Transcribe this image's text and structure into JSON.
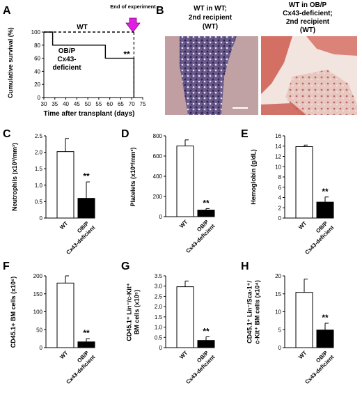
{
  "panel_letters": [
    "A",
    "B",
    "C",
    "D",
    "E",
    "F",
    "G",
    "H"
  ],
  "panel_a": {
    "ylabel": "Cumulative survival (%)",
    "xlabel": "Time after transplant (days)",
    "annotation": "End of experiment",
    "label_wt": "WT",
    "label_ko_line1": "OB/P",
    "label_ko_line2": "Cx43-",
    "label_ko_line3": "deficient",
    "significance": "**"
  },
  "panel_b": {
    "left_line1": "WT in WT;",
    "left_line2": "2nd recipient",
    "left_line3": "(WT)",
    "right_line1": "WT in OB/P",
    "right_line2": "Cx43-deficient;",
    "right_line3": "2nd recipient",
    "right_line4": "(WT)"
  },
  "chart_data": [
    {
      "type": "line",
      "panel": "A",
      "xlabel": "Time after transplant (days)",
      "ylabel": "Cumulative survival (%)",
      "xlim": [
        30,
        75
      ],
      "ylim": [
        0,
        100
      ],
      "xticks": [
        30,
        35,
        40,
        45,
        50,
        55,
        60,
        65,
        70,
        75
      ],
      "yticks": [
        0,
        20,
        40,
        60,
        80,
        100
      ],
      "series": [
        {
          "name": "WT",
          "style": "dashed",
          "x": [
            30,
            71,
            71
          ],
          "y": [
            100,
            100,
            100
          ]
        },
        {
          "name": "OB/P Cx43-deficient",
          "style": "solid",
          "x": [
            30,
            34,
            34,
            58,
            58,
            71,
            71
          ],
          "y": [
            100,
            100,
            80,
            80,
            60,
            60,
            0
          ]
        }
      ],
      "annotations": [
        "End of experiment",
        "**"
      ]
    },
    {
      "type": "bar",
      "panel": "C",
      "ylabel": "Neutrophils (x10³/mm³)",
      "categories": [
        "WT",
        "OB/P Cx43-deficient"
      ],
      "values": [
        2.02,
        0.6
      ],
      "errors": [
        0.4,
        0.5
      ],
      "ylim": [
        0,
        2.5
      ],
      "yticks": [
        "0",
        "0.5",
        "1.0",
        "1.5",
        "2.0",
        "2.5"
      ],
      "significance": "**"
    },
    {
      "type": "bar",
      "panel": "D",
      "ylabel": "Platelets (x10³/mm³)",
      "categories": [
        "WT",
        "OB/P Cx43-deficient"
      ],
      "values": [
        700,
        65
      ],
      "errors": [
        60,
        15
      ],
      "ylim": [
        0,
        800
      ],
      "yticks": [
        "0",
        "200",
        "400",
        "600",
        "800"
      ],
      "significance": "**"
    },
    {
      "type": "bar",
      "panel": "E",
      "ylabel": "Hemoglobin (g/dL)",
      "categories": [
        "WT",
        "OB/P Cx43-deficient"
      ],
      "values": [
        13.9,
        3.1
      ],
      "errors": [
        0.3,
        1.0
      ],
      "ylim": [
        0,
        16
      ],
      "yticks": [
        "0",
        "2",
        "4",
        "6",
        "8",
        "10",
        "12",
        "14",
        "16"
      ],
      "significance": "**"
    },
    {
      "type": "bar",
      "panel": "F",
      "ylabel": "CD45.1+ BM cells (x10⁶)",
      "categories": [
        "WT",
        "OB/P Cx43-deficient"
      ],
      "values": [
        180,
        16
      ],
      "errors": [
        20,
        9
      ],
      "ylim": [
        0,
        200
      ],
      "yticks": [
        "0",
        "50",
        "100",
        "150",
        "200"
      ],
      "significance": "**"
    },
    {
      "type": "bar",
      "panel": "G",
      "ylabel": "CD45.1+ Lin-/c-Kit+ BM cells (x10⁵)",
      "categories": [
        "WT",
        "OB/P Cx43-deficient"
      ],
      "values": [
        2.97,
        0.35
      ],
      "errors": [
        0.28,
        0.18
      ],
      "ylim": [
        0,
        3.5
      ],
      "yticks": [
        "0",
        "0.5",
        "1.0",
        "1.5",
        "2.0",
        "2.5",
        "3.0",
        "3.5"
      ],
      "significance": "**"
    },
    {
      "type": "bar",
      "panel": "H",
      "ylabel": "CD45.1+ Lin-/Sca-1+/ c-Kit+ BM cells (x10⁴)",
      "categories": [
        "WT",
        "OB/P Cx43-deficient"
      ],
      "values": [
        15.4,
        4.9
      ],
      "errors": [
        3.7,
        1.9
      ],
      "ylim": [
        0,
        20
      ],
      "yticks": [
        "0",
        "5",
        "10",
        "15",
        "20"
      ],
      "significance": "**"
    }
  ]
}
